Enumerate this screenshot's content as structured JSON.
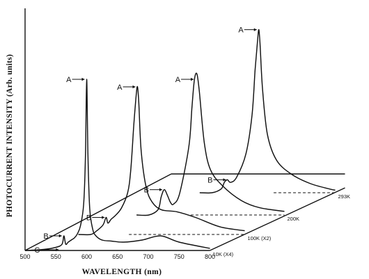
{
  "chart_data": {
    "type": "line",
    "xlabel": "WAVELENGTH (nm)",
    "ylabel": "PHOTOCURRENT INTENSITY (Arb. units)",
    "x_ticks": [
      500,
      550,
      600,
      650,
      700,
      750,
      800
    ],
    "xlim": [
      500,
      800
    ],
    "grid": false,
    "series": [
      {
        "name": "10K (X4)",
        "x": [
          500,
          530,
          550,
          560,
          563,
          566,
          570,
          575,
          580,
          585,
          590,
          595,
          598,
          600,
          602,
          605,
          610,
          615,
          625,
          640,
          660,
          690,
          720,
          750,
          800
        ],
        "y": [
          0,
          0.5,
          1.5,
          3,
          7,
          3,
          4,
          5,
          6,
          8,
          12,
          22,
          45,
          82,
          46,
          20,
          10,
          7,
          5,
          4.5,
          4,
          5,
          7,
          4,
          1
        ],
        "peaks": [
          {
            "label": "A",
            "x": 600
          },
          {
            "label": "B",
            "x": 563
          },
          {
            "label": "C",
            "x": 558
          }
        ]
      },
      {
        "name": "100K (X2)",
        "x": [
          530,
          550,
          560,
          570,
          575,
          578,
          583,
          590,
          600,
          610,
          615,
          620,
          624,
          626,
          628,
          632,
          640,
          650,
          665,
          690,
          720,
          760,
          800
        ],
        "y": [
          0,
          0,
          2,
          5,
          9,
          6,
          8,
          10,
          14,
          22,
          34,
          58,
          74,
          78,
          70,
          44,
          25,
          17,
          13,
          12,
          9,
          4,
          2
        ],
        "peaks": [
          {
            "label": "A",
            "x": 626
          },
          {
            "label": "B",
            "x": 576
          }
        ]
      },
      {
        "name": "200K",
        "x": [
          560,
          580,
          595,
          600,
          605,
          610,
          615,
          620,
          630,
          645,
          650,
          654,
          658,
          662,
          670,
          680,
          700,
          730,
          760,
          800
        ],
        "y": [
          0,
          0,
          3,
          10,
          14,
          11,
          7,
          6,
          12,
          38,
          60,
          75,
          78,
          68,
          40,
          25,
          16,
          8,
          4,
          2
        ],
        "peaks": [
          {
            "label": "A",
            "x": 656
          },
          {
            "label": "B",
            "x": 605
          }
        ]
      },
      {
        "name": "293K",
        "x": [
          580,
          600,
          615,
          620,
          625,
          630,
          640,
          655,
          665,
          670,
          674,
          676,
          678,
          682,
          690,
          705,
          730,
          760,
          790,
          800
        ],
        "y": [
          0,
          0,
          3,
          8,
          10,
          8,
          12,
          30,
          60,
          95,
          118,
          126,
          115,
          80,
          45,
          25,
          14,
          7,
          3,
          2
        ],
        "peaks": [
          {
            "label": "A",
            "x": 676
          },
          {
            "label": "B",
            "x": 626
          }
        ]
      }
    ]
  }
}
